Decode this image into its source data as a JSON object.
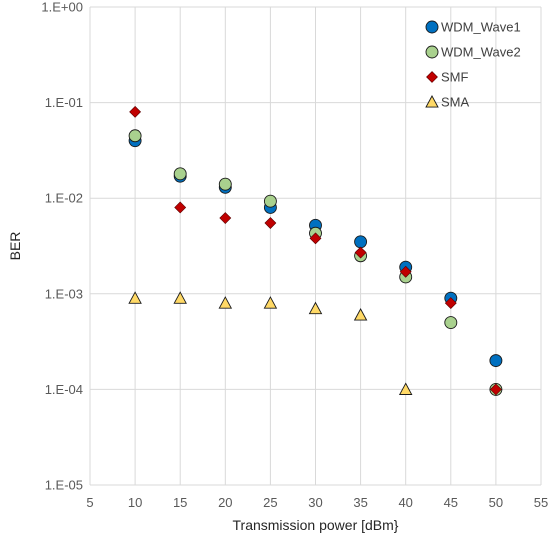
{
  "chart_data": {
    "type": "scatter",
    "title": "",
    "xlabel": "Transmission power [dBm}",
    "ylabel": "BER",
    "xlim": [
      5,
      55
    ],
    "ylim": [
      1e-05,
      1
    ],
    "y_scale": "log",
    "x_ticks": [
      "5",
      "10",
      "15",
      "20",
      "25",
      "30",
      "35",
      "40",
      "45",
      "50",
      "55"
    ],
    "y_ticks": [
      "1.E-05",
      "1.E-04",
      "1.E-03",
      "1.E-02",
      "1.E-01",
      "1.E+00"
    ],
    "grid": true,
    "legend_position": "top-right",
    "series": [
      {
        "name": "WDM_Wave1",
        "marker": "circle",
        "color": "#0070C0",
        "points": [
          [
            10,
            0.04
          ],
          [
            15,
            0.017
          ],
          [
            20,
            0.013
          ],
          [
            25,
            0.008
          ],
          [
            30,
            0.0052
          ],
          [
            35,
            0.0035
          ],
          [
            40,
            0.0019
          ],
          [
            45,
            0.0009
          ],
          [
            50,
            0.0002
          ]
        ]
      },
      {
        "name": "WDM_Wave2",
        "marker": "circle",
        "color": "#A9D18E",
        "points": [
          [
            10,
            0.045
          ],
          [
            15,
            0.018
          ],
          [
            20,
            0.014
          ],
          [
            25,
            0.0093
          ],
          [
            30,
            0.0043
          ],
          [
            35,
            0.0025
          ],
          [
            40,
            0.0015
          ],
          [
            45,
            0.0005
          ],
          [
            50,
            0.0001
          ]
        ]
      },
      {
        "name": "SMF",
        "marker": "diamond",
        "color": "#C00000",
        "points": [
          [
            10,
            0.08
          ],
          [
            15,
            0.008
          ],
          [
            20,
            0.0062
          ],
          [
            25,
            0.0055
          ],
          [
            30,
            0.0038
          ],
          [
            35,
            0.0027
          ],
          [
            40,
            0.0017
          ],
          [
            45,
            0.0008
          ],
          [
            50,
            0.0001
          ]
        ]
      },
      {
        "name": "SMA",
        "marker": "triangle",
        "color": "#FFD966",
        "points": [
          [
            10,
            0.0009
          ],
          [
            15,
            0.0009
          ],
          [
            20,
            0.0008
          ],
          [
            25,
            0.0008
          ],
          [
            30,
            0.0007
          ],
          [
            35,
            0.0006
          ],
          [
            40,
            0.0001
          ]
        ]
      }
    ]
  }
}
